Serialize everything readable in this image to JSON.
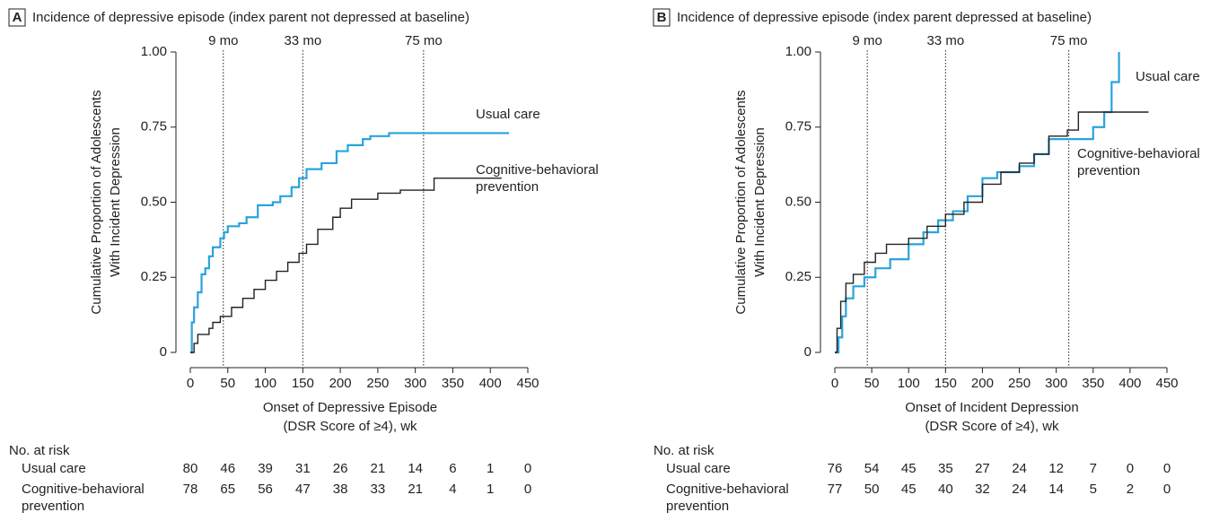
{
  "chart_data": [
    {
      "type": "step",
      "panel": "A",
      "title": "Incidence of depressive episode (index parent not depressed at baseline)",
      "x_label": [
        "Onset of Depressive Episode",
        "(DSR Score of ≥4), wk"
      ],
      "y_label": [
        "Cumulative Proportion of Adolescents",
        "With Incident Depression"
      ],
      "xlim": [
        0,
        450
      ],
      "xticks": [
        0,
        50,
        100,
        150,
        200,
        250,
        300,
        350,
        400,
        450
      ],
      "ylim": [
        0,
        1
      ],
      "yticks": [
        0,
        0.25,
        {
          "value": 0.5,
          "label": "0.50"
        },
        0.75,
        {
          "value": 1,
          "label": "1.00"
        }
      ],
      "reference_lines": [
        {
          "x": 44,
          "label": "9 mo"
        },
        {
          "x": 150,
          "label": "33 mo"
        },
        {
          "x": 311,
          "label": "75 mo"
        }
      ],
      "series": [
        {
          "name": "Usual care",
          "color": "#29a3dd",
          "x": [
            0,
            2,
            5,
            10,
            15,
            20,
            25,
            30,
            40,
            45,
            50,
            65,
            75,
            90,
            110,
            120,
            135,
            145,
            155,
            175,
            195,
            210,
            230,
            240,
            265,
            425
          ],
          "values": [
            0,
            0.1,
            0.15,
            0.2,
            0.26,
            0.28,
            0.32,
            0.35,
            0.38,
            0.4,
            0.42,
            0.43,
            0.45,
            0.49,
            0.5,
            0.52,
            0.55,
            0.58,
            0.61,
            0.63,
            0.67,
            0.69,
            0.71,
            0.72,
            0.73,
            0.73
          ]
        },
        {
          "name": "Cognitive-behavioral prevention",
          "color": "#222222",
          "x": [
            0,
            5,
            10,
            25,
            30,
            40,
            55,
            70,
            85,
            100,
            115,
            130,
            145,
            155,
            170,
            190,
            200,
            215,
            250,
            280,
            325,
            415
          ],
          "values": [
            0,
            0.03,
            0.06,
            0.08,
            0.1,
            0.12,
            0.15,
            0.18,
            0.21,
            0.24,
            0.27,
            0.3,
            0.33,
            0.36,
            0.41,
            0.45,
            0.48,
            0.51,
            0.53,
            0.54,
            0.58,
            0.58
          ]
        }
      ],
      "risk_table": {
        "title": "No. at risk",
        "rows": [
          {
            "name": "Usual care",
            "values": [
              80,
              46,
              39,
              31,
              26,
              21,
              14,
              6,
              1,
              0
            ]
          },
          {
            "name": "Cognitive-behavioral prevention",
            "values": [
              78,
              65,
              56,
              47,
              38,
              33,
              21,
              4,
              1,
              0
            ]
          }
        ]
      }
    },
    {
      "type": "step",
      "panel": "B",
      "title": "Incidence of depressive episode (index parent depressed at baseline)",
      "x_label": [
        "Onset of Incident Depression",
        "(DSR Score of ≥4), wk"
      ],
      "y_label": [
        "Cumulative Proportion of Adolescents",
        "With Incident Depression"
      ],
      "xlim": [
        0,
        450
      ],
      "xticks": [
        0,
        50,
        100,
        150,
        200,
        250,
        300,
        350,
        400,
        450
      ],
      "ylim": [
        0,
        1
      ],
      "yticks": [
        0,
        0.25,
        {
          "value": 0.5,
          "label": "0.50"
        },
        0.75,
        {
          "value": 1,
          "label": "1.00"
        }
      ],
      "reference_lines": [
        {
          "x": 44,
          "label": "9 mo"
        },
        {
          "x": 150,
          "label": "33 mo"
        },
        {
          "x": 317,
          "label": "75 mo"
        }
      ],
      "series": [
        {
          "name": "Usual care",
          "color": "#29a3dd",
          "x": [
            0,
            5,
            10,
            15,
            25,
            40,
            55,
            75,
            100,
            120,
            140,
            160,
            180,
            200,
            220,
            250,
            270,
            290,
            330,
            350,
            365,
            375,
            385
          ],
          "values": [
            0,
            0.05,
            0.12,
            0.18,
            0.22,
            0.25,
            0.28,
            0.31,
            0.36,
            0.4,
            0.44,
            0.47,
            0.52,
            0.58,
            0.6,
            0.62,
            0.66,
            0.71,
            0.71,
            0.75,
            0.8,
            0.9,
            1
          ]
        },
        {
          "name": "Cognitive-behavioral prevention",
          "color": "#222222",
          "x": [
            0,
            3,
            8,
            15,
            25,
            40,
            55,
            70,
            100,
            125,
            150,
            175,
            200,
            225,
            250,
            270,
            290,
            315,
            330,
            425
          ],
          "values": [
            0,
            0.08,
            0.17,
            0.23,
            0.26,
            0.3,
            0.33,
            0.36,
            0.38,
            0.42,
            0.46,
            0.5,
            0.56,
            0.6,
            0.63,
            0.66,
            0.72,
            0.74,
            0.8,
            0.8
          ]
        }
      ],
      "risk_table": {
        "title": "No. at risk",
        "rows": [
          {
            "name": "Usual care",
            "values": [
              76,
              54,
              45,
              35,
              27,
              24,
              12,
              7,
              0,
              0
            ]
          },
          {
            "name": "Cognitive-behavioral prevention",
            "values": [
              77,
              50,
              45,
              40,
              32,
              24,
              14,
              5,
              2,
              0
            ]
          }
        ]
      }
    }
  ]
}
